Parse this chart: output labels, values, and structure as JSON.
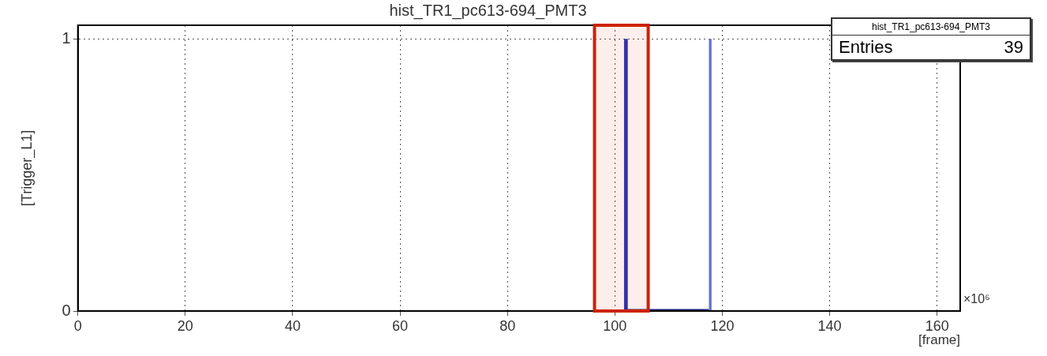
{
  "chart_data": {
    "type": "histogram",
    "title": "hist_TR1_pc613-694_PMT3",
    "xlabel": "[frame]",
    "ylabel": "[Trigger_L1]",
    "bins": [
      101.7,
      102.4,
      117.5,
      118
    ],
    "bands": [
      {
        "axis": "x",
        "from": 96.2,
        "to": 106.2,
        "color": "#cc2200"
      }
    ],
    "values": [
      1,
      0,
      1
    ],
    "colors": [
      "#2a32b0",
      "#1a2080",
      "#6a72c8"
    ],
    "xlim": [
      0,
      164.3
    ],
    "xticks": [
      0,
      20,
      40,
      60,
      80,
      100,
      120,
      140,
      160
    ],
    "ylim": [
      0,
      1.05
    ],
    "yticks": [
      0,
      1
    ],
    "grid": true,
    "legend": false,
    "annotations": [
      "×10⁶",
      "hist_TR1_pc613-694_PMT3",
      "Entries",
      "39"
    ]
  }
}
